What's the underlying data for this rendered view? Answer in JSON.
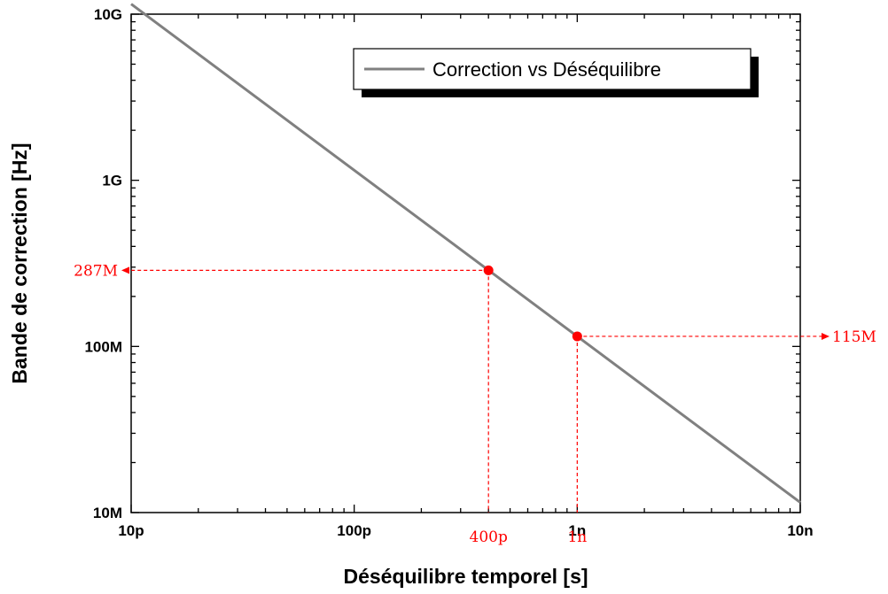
{
  "chart_data": {
    "type": "line",
    "scale": {
      "x": "log",
      "y": "log"
    },
    "xlabel": "Déséquilibre temporel [s]",
    "ylabel": "Bande de correction [Hz]",
    "xlim": [
      1e-11,
      1e-08
    ],
    "ylim": [
      10000000.0,
      10000000000.0
    ],
    "x_ticks": [
      {
        "value": 1e-11,
        "label": "10p"
      },
      {
        "value": 1e-10,
        "label": "100p"
      },
      {
        "value": 1e-09,
        "label": "1n"
      },
      {
        "value": 1e-08,
        "label": "10n"
      }
    ],
    "y_ticks": [
      {
        "value": 10000000.0,
        "label": "10M"
      },
      {
        "value": 100000000.0,
        "label": "100M"
      },
      {
        "value": 1000000000.0,
        "label": "1G"
      },
      {
        "value": 10000000000.0,
        "label": "10G"
      }
    ],
    "series": [
      {
        "name": "Correction vs Déséquilibre",
        "color": "#808080",
        "x": [
          1e-11,
          1e-08
        ],
        "y": [
          11500000000,
          11500000
        ]
      }
    ],
    "annotations": [
      {
        "x": 4e-10,
        "y": 287000000,
        "x_label": "400p",
        "y_label": "287M",
        "y_label_side": "left"
      },
      {
        "x": 1e-09,
        "y": 115000000,
        "x_label": "1n",
        "y_label": "115M",
        "y_label_side": "right"
      }
    ],
    "annotation_color": "#ff0000",
    "legend": {
      "position": "top-right",
      "entries": [
        "Correction vs Déséquilibre"
      ]
    },
    "grid": false
  }
}
